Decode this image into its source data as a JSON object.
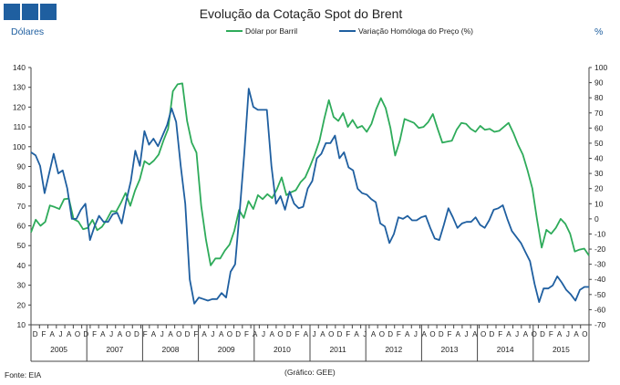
{
  "chart_data": {
    "type": "line",
    "title": "Evolução da Cotação Spot do Brent",
    "ylabel_left": "Dólares",
    "ylabel_right": "%",
    "ylim_left": [
      10,
      140
    ],
    "ylim_right": [
      -70,
      100
    ],
    "yticks_left": [
      "10",
      "20",
      "30",
      "40",
      "50",
      "60",
      "70",
      "80",
      "90",
      "100",
      "110",
      "120",
      "130",
      "140"
    ],
    "yticks_right": [
      "-70",
      "-60",
      "-50",
      "-40",
      "-30",
      "-20",
      "-10",
      "0",
      "10",
      "20",
      "30",
      "40",
      "50",
      "60",
      "70",
      "80",
      "90",
      "100"
    ],
    "x_month_labels": [
      "D",
      "F",
      "A",
      "J",
      "A",
      "O",
      "D",
      "F",
      "A",
      "J",
      "A",
      "O",
      "D",
      "F",
      "A",
      "J",
      "A",
      "O",
      "D",
      "F",
      "A",
      "J",
      "A",
      "O",
      "D",
      "F",
      "A",
      "J",
      "A",
      "O",
      "D",
      "F",
      "A",
      "J",
      "A",
      "O",
      "D",
      "F",
      "A",
      "J",
      "A",
      "O",
      "D",
      "F",
      "A",
      "J",
      "A",
      "O",
      "D",
      "F",
      "A",
      "J",
      "A",
      "O",
      "D",
      "F",
      "A",
      "J",
      "A",
      "O",
      "D",
      "F",
      "A",
      "J",
      "A",
      "O"
    ],
    "x_year_labels": [
      "2005",
      "2007",
      "2008",
      "2009",
      "2010",
      "2011",
      "2012",
      "2013",
      "2014",
      "2015"
    ],
    "grid": false,
    "legend_position": "top",
    "series": [
      {
        "name": "Dólar por Barril",
        "axis": "left",
        "color": "#2eab5a",
        "values": [
          56.7,
          63.1,
          60.0,
          62.0,
          70.3,
          69.5,
          68.5,
          73.5,
          73.8,
          63.4,
          62.2,
          58.3,
          59.0,
          63.0,
          57.8,
          59.5,
          63.0,
          67.5,
          67.2,
          71.5,
          76.6,
          70.1,
          77.8,
          83.5,
          92.7,
          91.0,
          93.0,
          96.0,
          103.0,
          109.0,
          128.0,
          131.5,
          132.0,
          113.0,
          102.0,
          97.0,
          70.0,
          53.0,
          40.0,
          43.5,
          43.5,
          47.5,
          50.5,
          57.5,
          68.0,
          64.0,
          72.5,
          68.5,
          75.5,
          73.5,
          76.0,
          74.0,
          78.5,
          84.5,
          75.5,
          77.0,
          78.0,
          82.0,
          84.5,
          90.0,
          96.0,
          103.0,
          114.0,
          123.5,
          115.0,
          113.0,
          117.0,
          110.0,
          113.5,
          109.5,
          110.5,
          107.5,
          111.5,
          119.0,
          124.5,
          119.5,
          109.5,
          95.5,
          103.0,
          114.0,
          113.0,
          112.0,
          109.5,
          110.0,
          112.5,
          116.5,
          109.0,
          102.0,
          102.5,
          103.0,
          108.5,
          112.0,
          111.5,
          109.0,
          107.5,
          110.5,
          108.5,
          109.0,
          107.5,
          108.0,
          110.0,
          112.0,
          107.0,
          101.0,
          96.0,
          88.0,
          79.0,
          63.5,
          49.0,
          58.0,
          56.0,
          59.0,
          63.5,
          61.0,
          56.0,
          47.0,
          48.0,
          48.5,
          45.0
        ]
      },
      {
        "name": "Variação Homóloga do Preço (%)",
        "axis": "right",
        "color": "#1f5fa0",
        "values": [
          44,
          42,
          35,
          17,
          30,
          43,
          30,
          32,
          20,
          0,
          0,
          6,
          10,
          -14,
          -5,
          2,
          -2,
          -2,
          3,
          4,
          -3,
          12,
          25,
          45,
          35,
          58,
          49,
          53,
          48,
          55,
          62,
          73,
          64,
          35,
          10,
          -40,
          -56,
          -52,
          -53,
          -54,
          -53,
          -53,
          -49,
          -52,
          -35,
          -30,
          5,
          43,
          86,
          74,
          72,
          72,
          72,
          35,
          10,
          15,
          6,
          18,
          10,
          7,
          8,
          20,
          25,
          40,
          43,
          50,
          50,
          55,
          40,
          44,
          34,
          32,
          20,
          17,
          16,
          13,
          11,
          -3,
          -5,
          -16,
          -10,
          1,
          0,
          2,
          -1,
          -1,
          1,
          2,
          -6,
          -13,
          -14,
          -4,
          7,
          1,
          -6,
          -3,
          -2,
          -2,
          1,
          -4,
          -6,
          -1,
          6,
          7,
          9,
          0,
          -8,
          -12,
          -16,
          -22,
          -28,
          -43,
          -55,
          -46,
          -46,
          -44,
          -38,
          -42,
          -47,
          -50,
          -54,
          -47,
          -45,
          -45
        ]
      }
    ]
  },
  "source_label": "Fonte: EIA",
  "credit_label": "(Gráfico: GEE)",
  "brand_colors": {
    "header_squares": "#1f5fa0"
  }
}
